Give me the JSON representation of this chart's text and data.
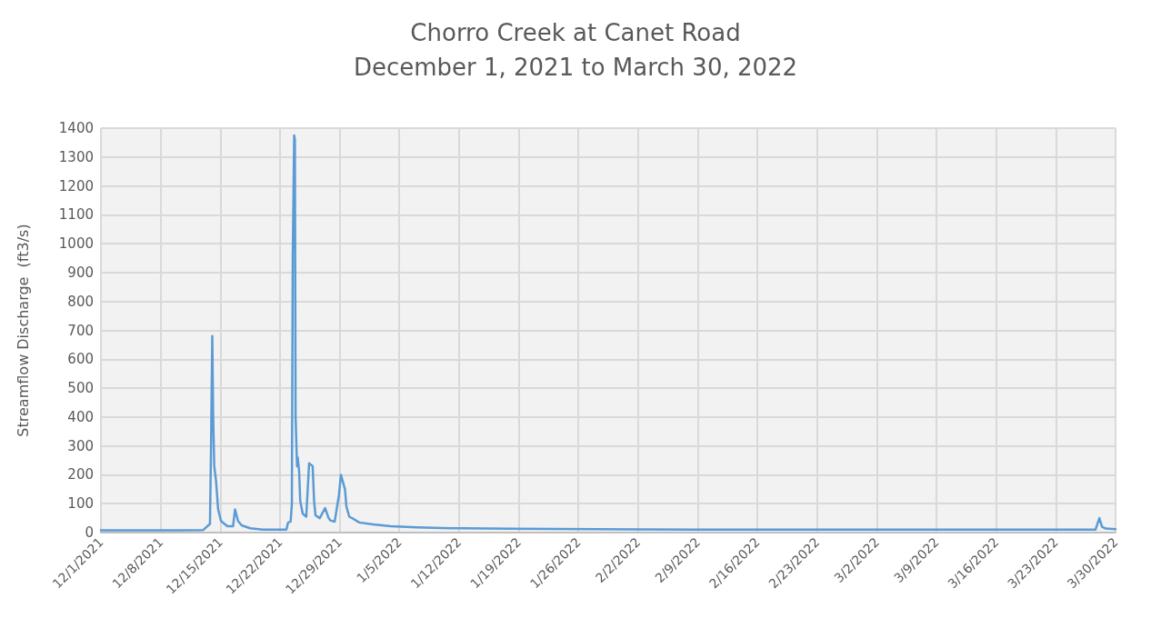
{
  "chart_data": {
    "type": "line",
    "title": "Chorro Creek at Canet Road",
    "subtitle": "December 1, 2021 to March 30, 2022",
    "ylabel": "Streamflow Discharge  (ft3/s)",
    "x": [
      "2021-12-01",
      "2021-12-04",
      "2021-12-07",
      "2021-12-10",
      "2021-12-13",
      "2021-12-13T19:00",
      "2021-12-13T22:00",
      "2021-12-14T01:30",
      "2021-12-14T04:00",
      "2021-12-14T07:00",
      "2021-12-14T12:00",
      "2021-12-14T18:00",
      "2021-12-15T02:00",
      "2021-12-15T20:00",
      "2021-12-16T12:00",
      "2021-12-16T17:30",
      "2021-12-17T02:00",
      "2021-12-17T12:00",
      "2021-12-18T12:00",
      "2021-12-20",
      "2021-12-22T18:00",
      "2021-12-22T23:00",
      "2021-12-23T06:00",
      "2021-12-23T09:30",
      "2021-12-23T12:00",
      "2021-12-23T16:00",
      "2021-12-23T18:00",
      "2021-12-23T20:00",
      "2021-12-24T00:00",
      "2021-12-24T02:00",
      "2021-12-24T06:00",
      "2021-12-24T09:00",
      "2021-12-24T16:00",
      "2021-12-25T02:00",
      "2021-12-25T10:00",
      "2021-12-25T20:00",
      "2021-12-26T00:00",
      "2021-12-26T04:00",
      "2021-12-26T16:00",
      "2021-12-27T07:00",
      "2021-12-27T17:00",
      "2021-12-27T22:00",
      "2021-12-28T10:00",
      "2021-12-28T22:00",
      "2021-12-29T03:30",
      "2021-12-29T15:00",
      "2021-12-29T19:00",
      "2021-12-30T03:00",
      "2021-12-30T18:00",
      "2021-12-31T07:00",
      "2022-01-01T22:00",
      "2022-01-04",
      "2022-01-07",
      "2022-01-11",
      "2022-01-18",
      "2022-01-28",
      "2022-02-02",
      "2022-02-13",
      "2022-02-24",
      "2022-03-06",
      "2022-03-17",
      "2022-03-27T15:30",
      "2022-03-28T02:30",
      "2022-03-28T10:00",
      "2022-03-28T20:00",
      "2022-03-30"
    ],
    "series": [
      {
        "color": "#5b9bd5",
        "values": [
          8,
          8,
          8,
          8,
          9,
          30,
          300,
          680,
          400,
          230,
          180,
          80,
          40,
          22,
          22,
          80,
          40,
          25,
          15,
          10,
          10,
          35,
          38,
          100,
          950,
          1375,
          1360,
          400,
          230,
          260,
          210,
          110,
          65,
          55,
          240,
          230,
          110,
          60,
          50,
          85,
          50,
          42,
          38,
          130,
          200,
          150,
          90,
          55,
          45,
          35,
          28,
          22,
          18,
          15,
          13,
          12,
          11,
          10,
          10,
          10,
          10,
          10,
          50,
          20,
          14,
          12
        ]
      }
    ],
    "xlim": [
      "2021-12-01",
      "2022-03-30"
    ],
    "xticks": [
      {
        "value": "2021-12-01",
        "label": "12/1/2021"
      },
      {
        "value": "2021-12-08",
        "label": "12/8/2021"
      },
      {
        "value": "2021-12-15",
        "label": "12/15/2021"
      },
      {
        "value": "2021-12-22",
        "label": "12/22/2021"
      },
      {
        "value": "2021-12-29",
        "label": "12/29/2021"
      },
      {
        "value": "2022-01-05",
        "label": "1/5/2022"
      },
      {
        "value": "2022-01-12",
        "label": "1/12/2022"
      },
      {
        "value": "2022-01-19",
        "label": "1/19/2022"
      },
      {
        "value": "2022-01-26",
        "label": "1/26/2022"
      },
      {
        "value": "2022-02-02",
        "label": "2/2/2022"
      },
      {
        "value": "2022-02-09",
        "label": "2/9/2022"
      },
      {
        "value": "2022-02-16",
        "label": "2/16/2022"
      },
      {
        "value": "2022-02-23",
        "label": "2/23/2022"
      },
      {
        "value": "2022-03-02",
        "label": "3/2/2022"
      },
      {
        "value": "2022-03-09",
        "label": "3/9/2022"
      },
      {
        "value": "2022-03-16",
        "label": "3/16/2022"
      },
      {
        "value": "2022-03-23",
        "label": "3/23/2022"
      },
      {
        "value": "2022-03-30",
        "label": "3/30/2022"
      }
    ],
    "ylim": [
      0,
      1400
    ],
    "yticks": [
      0,
      100,
      200,
      300,
      400,
      500,
      600,
      700,
      800,
      900,
      1000,
      1100,
      1200,
      1300,
      1400
    ],
    "grid": true,
    "marker": "none",
    "line_style": "solid"
  }
}
